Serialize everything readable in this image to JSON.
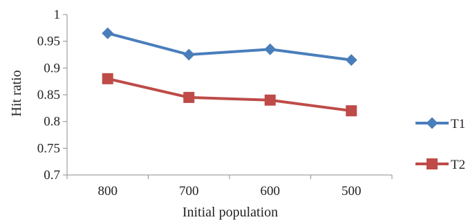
{
  "chart_data": {
    "type": "line",
    "categories": [
      "800",
      "700",
      "600",
      "500"
    ],
    "series": [
      {
        "name": "T1",
        "marker": "diamond",
        "color": "#4a7ebb",
        "values": [
          0.965,
          0.925,
          0.935,
          0.915
        ]
      },
      {
        "name": "T2",
        "marker": "square",
        "color": "#be4b48",
        "values": [
          0.88,
          0.845,
          0.84,
          0.82
        ]
      }
    ],
    "yticks": [
      "0.7",
      "0.75",
      "0.8",
      "0.85",
      "0.9",
      "0.95",
      "1"
    ],
    "ylim": [
      0.7,
      1.0
    ],
    "xlabel": "Initial population",
    "ylabel": "Hit ratio",
    "grid": false,
    "legend_position": "right"
  }
}
